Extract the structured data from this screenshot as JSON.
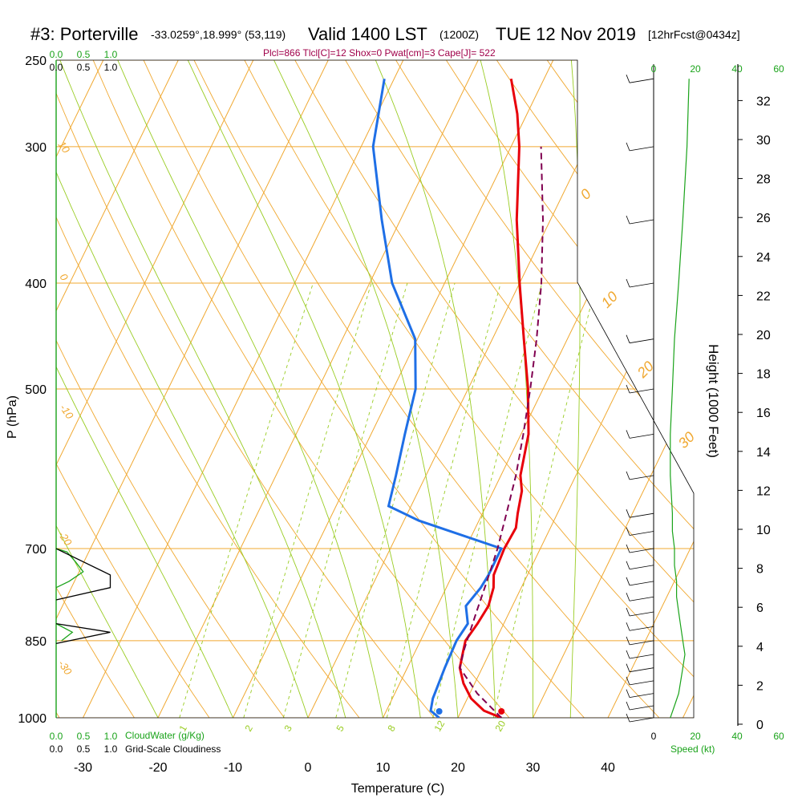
{
  "header": {
    "station": "#3: Porterville",
    "coords": "-33.0259°,18.999° (53,119)",
    "valid": "Valid 1400 LST",
    "utc": "(1200Z)",
    "date": "TUE 12 Nov 2019",
    "fcst": "[12hrFcst@0434z]"
  },
  "indices": "Plcl=866 Tlcl[C]=12 Shox=0 Pwat[cm]=3 Cape[J]= 522",
  "colors": {
    "temperature": "#e8000b",
    "dewpoint": "#1f6fe6",
    "parcel": "#800050",
    "isotherm": "#f0a830",
    "dry_adiabat": "#f0a830",
    "moist_adiabat": "#99cc22",
    "mixing_ratio": "#99cc22",
    "cloud_water": "#1aa31a",
    "wind_speed": "#1aa31a"
  },
  "labels": {
    "pressure_axis": "P (hPa)",
    "temperature_axis": "Temperature (C)",
    "height_axis": "Height (1000 Feet)",
    "speed_axis": "Speed (kt)",
    "cloud_water": "CloudWater (g/Kg)",
    "cloudiness": "Grid-Scale Cloudiness"
  },
  "chart_data": {
    "type": "line",
    "title": "#3: Porterville  Valid 1400 LST (1200Z) TUE 12 Nov 2019",
    "xlabel": "Temperature (C)",
    "ylabel": "P (hPa)",
    "xlim": [
      -33,
      52
    ],
    "ylim": [
      1000,
      250
    ],
    "y_scale": "log",
    "pressure_ticks": [
      1000,
      850,
      700,
      500,
      400,
      300,
      250
    ],
    "temperature_ticks": [
      -30,
      -20,
      -10,
      0,
      10,
      20,
      30,
      40
    ],
    "height_ticks_kft": [
      0,
      2,
      4,
      6,
      8,
      10,
      12,
      14,
      16,
      18,
      20,
      22,
      24,
      26,
      28,
      30,
      32
    ],
    "speed_ticks_kt": [
      0,
      20,
      40,
      60
    ],
    "cloud_ticks": [
      0.0,
      0.5,
      1.0
    ],
    "isotherm_labels": [
      "0",
      "10",
      "20",
      "30"
    ],
    "dry_adiabat_labels": [
      "10",
      "0",
      "-10",
      "-20",
      "-30"
    ],
    "mixing_ratio_labels": [
      "1",
      "2",
      "3",
      "5",
      "8",
      "12",
      "20"
    ],
    "series": [
      {
        "name": "Temperature",
        "points": [
          [
            1000,
            25.8
          ],
          [
            985,
            23.0
          ],
          [
            960,
            20.5
          ],
          [
            930,
            18.5
          ],
          [
            900,
            17.0
          ],
          [
            870,
            16.4
          ],
          [
            850,
            16.0
          ],
          [
            820,
            16.5
          ],
          [
            790,
            16.8
          ],
          [
            760,
            16.3
          ],
          [
            740,
            15.5
          ],
          [
            700,
            15.2
          ],
          [
            670,
            15.4
          ],
          [
            650,
            14.7
          ],
          [
            620,
            13.8
          ],
          [
            600,
            12.6
          ],
          [
            550,
            11.0
          ],
          [
            500,
            8.0
          ],
          [
            450,
            4.2
          ],
          [
            400,
            0.0
          ],
          [
            350,
            -4.5
          ],
          [
            300,
            -8.9
          ],
          [
            280,
            -11.3
          ],
          [
            260,
            -14.4
          ]
        ]
      },
      {
        "name": "Dewpoint",
        "points": [
          [
            1000,
            17.5
          ],
          [
            985,
            15.9
          ],
          [
            960,
            15.4
          ],
          [
            900,
            15.0
          ],
          [
            850,
            14.8
          ],
          [
            820,
            15.2
          ],
          [
            790,
            13.8
          ],
          [
            760,
            14.6
          ],
          [
            740,
            14.8
          ],
          [
            700,
            14.8
          ],
          [
            660,
            2.0
          ],
          [
            640,
            -3.0
          ],
          [
            600,
            -4.0
          ],
          [
            550,
            -5.5
          ],
          [
            500,
            -7.0
          ],
          [
            450,
            -10.3
          ],
          [
            400,
            -17.0
          ],
          [
            350,
            -22.5
          ],
          [
            300,
            -28.4
          ],
          [
            260,
            -31.3
          ]
        ]
      },
      {
        "name": "Parcel",
        "points": [
          [
            1000,
            25.8
          ],
          [
            950,
            21.0
          ],
          [
            900,
            17.0
          ],
          [
            866,
            16.4
          ],
          [
            850,
            16.2
          ],
          [
            800,
            15.6
          ],
          [
            750,
            15.0
          ],
          [
            700,
            14.3
          ],
          [
            650,
            13.2
          ],
          [
            600,
            12.0
          ],
          [
            550,
            10.3
          ],
          [
            500,
            8.3
          ],
          [
            450,
            5.9
          ],
          [
            400,
            2.9
          ],
          [
            350,
            -1.0
          ],
          [
            300,
            -6.0
          ]
        ]
      }
    ],
    "wind_profile_kt": [
      [
        1000,
        8
      ],
      [
        975,
        10
      ],
      [
        950,
        12
      ],
      [
        925,
        13
      ],
      [
        900,
        14
      ],
      [
        875,
        15
      ],
      [
        850,
        14
      ],
      [
        825,
        13
      ],
      [
        800,
        12
      ],
      [
        775,
        11
      ],
      [
        750,
        11
      ],
      [
        725,
        10
      ],
      [
        700,
        10
      ],
      [
        675,
        9
      ],
      [
        650,
        9
      ],
      [
        600,
        8
      ],
      [
        550,
        8
      ],
      [
        500,
        9
      ],
      [
        450,
        10
      ],
      [
        400,
        12
      ],
      [
        350,
        14
      ],
      [
        300,
        16
      ],
      [
        260,
        17
      ]
    ],
    "cloud_water_profile": [
      [
        760,
        0.0
      ],
      [
        750,
        0.12
      ],
      [
        735,
        0.25
      ],
      [
        720,
        0.18
      ],
      [
        705,
        0.1
      ],
      [
        700,
        0.0
      ],
      [
        820,
        0.0
      ],
      [
        835,
        0.15
      ],
      [
        850,
        0.05
      ]
    ],
    "cloudiness_profile": [
      [
        700,
        0.0
      ],
      [
        740,
        0.5
      ],
      [
        760,
        0.5
      ],
      [
        780,
        0.0
      ],
      [
        820,
        0.0
      ],
      [
        835,
        0.5
      ],
      [
        855,
        0.0
      ]
    ]
  }
}
